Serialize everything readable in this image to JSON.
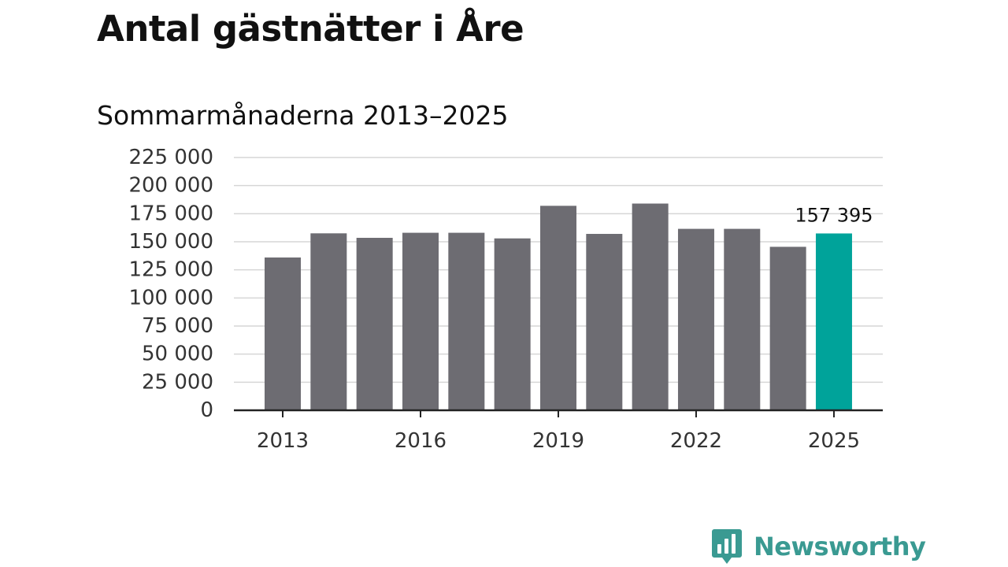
{
  "header": {
    "title": "Antal gästnätter i Åre",
    "subtitle": "Sommarmånaderna 2013–2025"
  },
  "colors": {
    "bar": "#6d6c72",
    "highlight": "#00a39a",
    "grid": "#d6d6d6",
    "axis": "#222222",
    "brand": "#3a9a92"
  },
  "chart_data": {
    "type": "bar",
    "title": "Antal gästnätter i Åre",
    "subtitle": "Sommarmånaderna 2013–2025",
    "xlabel": "",
    "ylabel": "",
    "categories": [
      "2013",
      "2014",
      "2015",
      "2016",
      "2017",
      "2018",
      "2019",
      "2020",
      "2021",
      "2022",
      "2023",
      "2024",
      "2025"
    ],
    "values": [
      136000,
      157500,
      153500,
      158000,
      158000,
      153000,
      182000,
      157000,
      184000,
      161500,
      161500,
      145500,
      157395
    ],
    "highlight_index": 12,
    "data_labels": [
      {
        "index": 12,
        "text": "157 395"
      }
    ],
    "ylim": [
      0,
      225000
    ],
    "yticks": [
      {
        "value": 0,
        "label": "0"
      },
      {
        "value": 25000,
        "label": "25 000"
      },
      {
        "value": 50000,
        "label": "50 000"
      },
      {
        "value": 75000,
        "label": "75 000"
      },
      {
        "value": 100000,
        "label": "100 000"
      },
      {
        "value": 125000,
        "label": "125 000"
      },
      {
        "value": 150000,
        "label": "150 000"
      },
      {
        "value": 175000,
        "label": "175 000"
      },
      {
        "value": 200000,
        "label": "200 000"
      },
      {
        "value": 225000,
        "label": "225 000"
      }
    ],
    "xtick_labels": [
      "2013",
      "2016",
      "2019",
      "2022",
      "2025"
    ],
    "grid": true,
    "legend": "none"
  },
  "footer": {
    "brand": "Newsworthy",
    "logo_icon": "newsworthy-logo-icon"
  }
}
